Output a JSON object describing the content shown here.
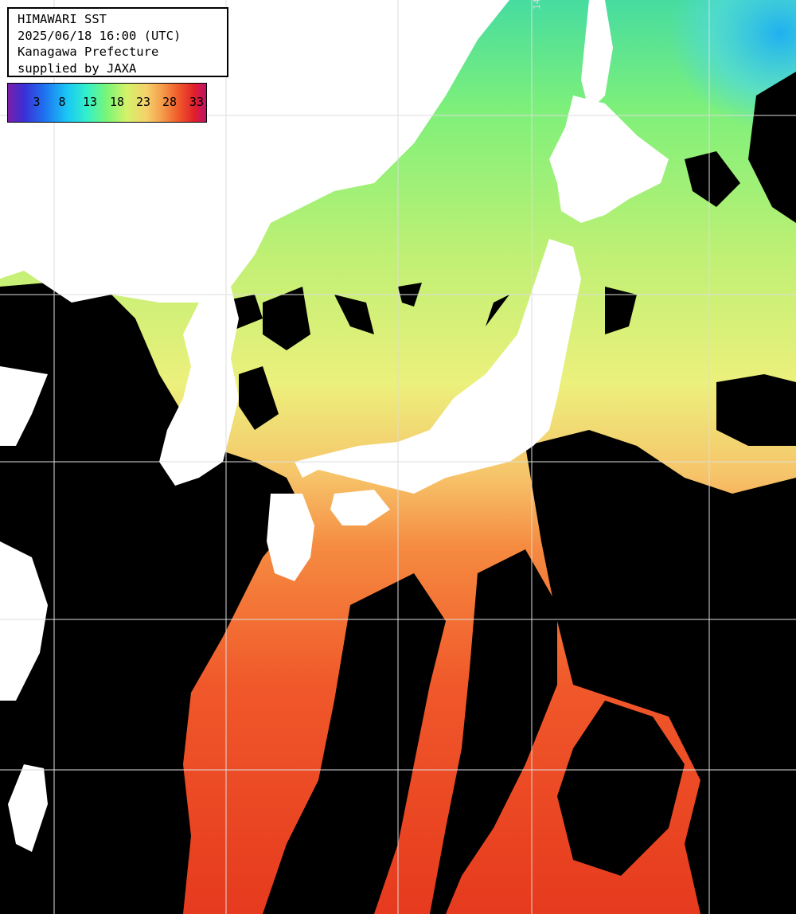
{
  "info": {
    "line1": "HIMAWARI SST",
    "line2": "2025/06/18 16:00 (UTC)",
    "line3": "Kanagawa Prefecture",
    "line4": "supplied by JAXA"
  },
  "legend": {
    "labels": [
      "3",
      "8",
      "13",
      "18",
      "23",
      "28",
      "33"
    ]
  },
  "graticule": {
    "meridian_label": "140"
  },
  "colors": {
    "land": "#ffffff",
    "cloud_no_data": "#000000",
    "grid": "#dddddd"
  }
}
